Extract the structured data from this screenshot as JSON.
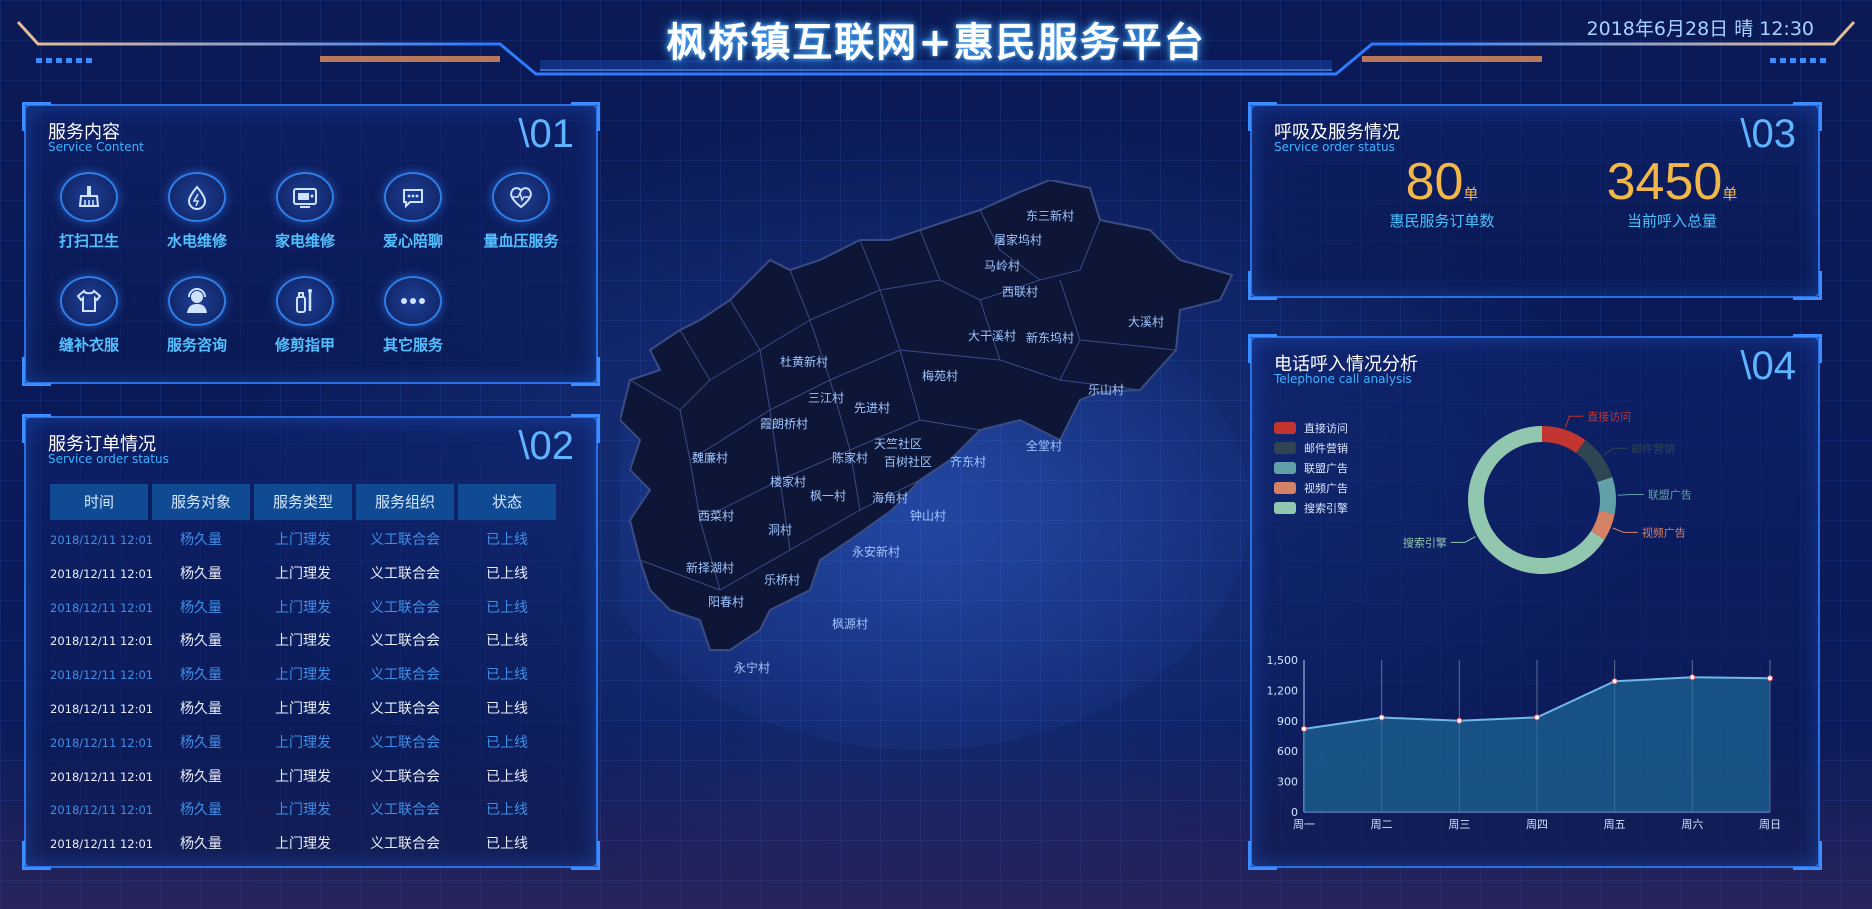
{
  "header": {
    "title": "枫桥镇互联网+惠民服务平台",
    "datetime": "2018年6月28日 晴 12:30"
  },
  "services_panel": {
    "title": "服务内容",
    "subtitle": "Service Content",
    "number": "\\01",
    "items": [
      {
        "label": "打扫卫生",
        "icon": "broom-icon"
      },
      {
        "label": "水电维修",
        "icon": "water-drop-icon"
      },
      {
        "label": "家电维修",
        "icon": "tv-icon"
      },
      {
        "label": "爱心陪聊",
        "icon": "chat-bubble-icon"
      },
      {
        "label": "量血压服务",
        "icon": "heart-pulse-icon"
      },
      {
        "label": "缝补衣服",
        "icon": "tshirt-icon"
      },
      {
        "label": "服务咨询",
        "icon": "customer-service-icon"
      },
      {
        "label": "修剪指甲",
        "icon": "nail-clipper-icon"
      },
      {
        "label": "其它服务",
        "icon": "more-icon"
      }
    ]
  },
  "orders_panel": {
    "title": "服务订单情况",
    "subtitle": "Service order status",
    "number": "\\02",
    "columns": [
      "时间",
      "服务对象",
      "服务类型",
      "服务组织",
      "状态"
    ],
    "rows": [
      [
        "2018/12/11 12:01",
        "杨久量",
        "上门理发",
        "义工联合会",
        "已上线"
      ],
      [
        "2018/12/11 12:01",
        "杨久量",
        "上门理发",
        "义工联合会",
        "已上线"
      ],
      [
        "2018/12/11 12:01",
        "杨久量",
        "上门理发",
        "义工联合会",
        "已上线"
      ],
      [
        "2018/12/11 12:01",
        "杨久量",
        "上门理发",
        "义工联合会",
        "已上线"
      ],
      [
        "2018/12/11 12:01",
        "杨久量",
        "上门理发",
        "义工联合会",
        "已上线"
      ],
      [
        "2018/12/11 12:01",
        "杨久量",
        "上门理发",
        "义工联合会",
        "已上线"
      ],
      [
        "2018/12/11 12:01",
        "杨久量",
        "上门理发",
        "义工联合会",
        "已上线"
      ],
      [
        "2018/12/11 12:01",
        "杨久量",
        "上门理发",
        "义工联合会",
        "已上线"
      ],
      [
        "2018/12/11 12:01",
        "杨久量",
        "上门理发",
        "义工联合会",
        "已上线"
      ],
      [
        "2018/12/11 12:01",
        "杨久量",
        "上门理发",
        "义工联合会",
        "已上线"
      ]
    ]
  },
  "map": {
    "villages": [
      "东三新村",
      "屠家坞村",
      "马岭村",
      "西联村",
      "大溪村",
      "大干溪村",
      "新东坞村",
      "乐山村",
      "杜黄新村",
      "梅苑村",
      "三江村",
      "先进村",
      "霞朗桥村",
      "天竺社区",
      "陈家村",
      "百树社区",
      "齐东村",
      "全堂村",
      "魏廉村",
      "楼家村",
      "枫一村",
      "海角村",
      "西菜村",
      "洞村",
      "钟山村",
      "永安新村",
      "新择湖村",
      "乐桥村",
      "阳春村",
      "枫源村",
      "永宁村"
    ]
  },
  "calls_panel": {
    "title": "呼吸及服务情况",
    "subtitle": "Service order status",
    "number": "\\03",
    "stat1": {
      "value": "80",
      "unit": "单",
      "caption": "惠民服务订单数"
    },
    "stat2": {
      "value": "3450",
      "unit": "单",
      "caption": "当前呼入总量"
    }
  },
  "analysis_panel": {
    "title": "电话呼入情况分析",
    "subtitle": "Telephone call analysis",
    "number": "\\04",
    "colors": [
      "#c23531",
      "#2f4554",
      "#61a0a8",
      "#d48265",
      "#91c7ae"
    ]
  },
  "chart_data": [
    {
      "type": "pie",
      "donut": true,
      "legend_position": "top-left",
      "labels": [
        "直接访问",
        "邮件营销",
        "联盟广告",
        "视频广告",
        "搜索引擎"
      ],
      "values": [
        10,
        10,
        8,
        6,
        66
      ]
    },
    {
      "type": "area",
      "categories": [
        "周一",
        "周二",
        "周三",
        "周四",
        "周五",
        "周六",
        "周日"
      ],
      "values": [
        820,
        932,
        901,
        934,
        1290,
        1330,
        1320
      ],
      "yticks": [
        "0",
        "300",
        "600",
        "900",
        "1,200",
        "1,500"
      ],
      "ylim": [
        0,
        1500
      ],
      "grid": false
    }
  ]
}
